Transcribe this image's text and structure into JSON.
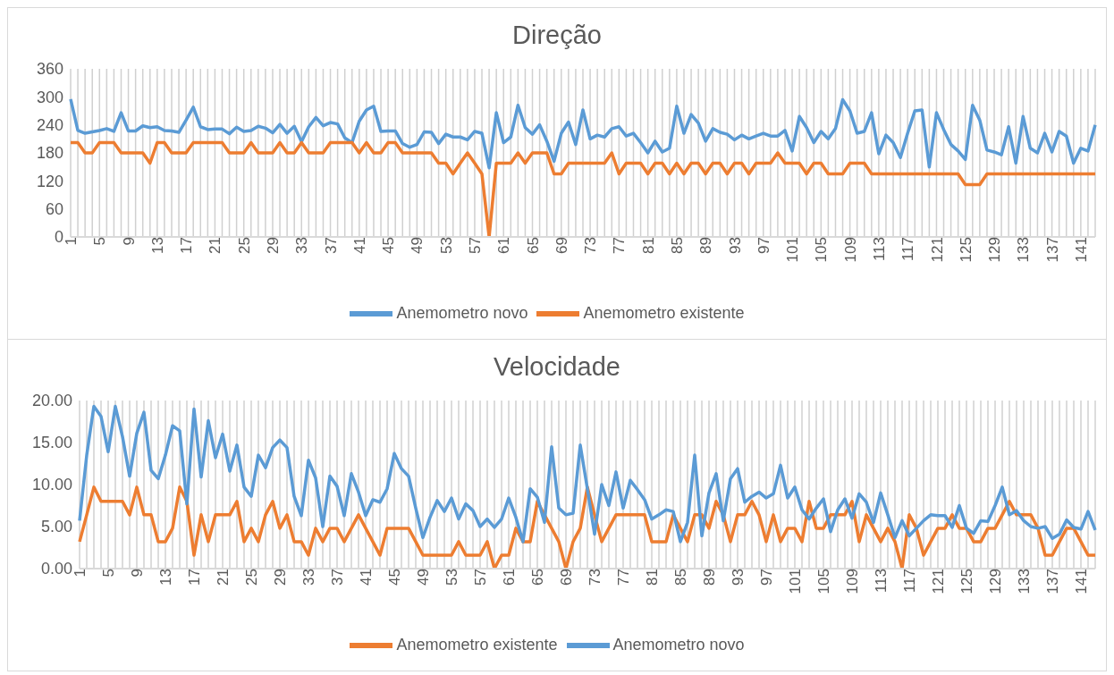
{
  "chart_data": [
    {
      "type": "line",
      "title": "Direção",
      "categories": [
        "1",
        null,
        null,
        null,
        "5",
        null,
        null,
        null,
        "9",
        null,
        null,
        null,
        "13",
        null,
        null,
        null,
        "17",
        null,
        null,
        null,
        "21",
        null,
        null,
        null,
        "25",
        null,
        null,
        null,
        "29",
        null,
        null,
        null,
        "33",
        null,
        null,
        null,
        "37",
        null,
        null,
        null,
        "41",
        null,
        null,
        null,
        "45",
        null,
        null,
        null,
        "49",
        null,
        null,
        null,
        "53",
        null,
        null,
        null,
        "57",
        null,
        null,
        null,
        "61",
        null,
        null,
        null,
        "65",
        null,
        null,
        null,
        "69",
        null,
        null,
        null,
        "73",
        null,
        null,
        null,
        "77",
        null,
        null,
        null,
        "81",
        null,
        null,
        null,
        "85",
        null,
        null,
        null,
        "89",
        null,
        null,
        null,
        "93",
        null,
        null,
        null,
        "97",
        null,
        null,
        null,
        "101",
        null,
        null,
        null,
        "105",
        null,
        null,
        null,
        "109",
        null,
        null,
        null,
        "113",
        null,
        null,
        null,
        "117",
        null,
        null,
        null,
        "121",
        null,
        null,
        null,
        "125",
        null,
        null,
        null,
        "129",
        null,
        null,
        null,
        "133",
        null,
        null,
        null,
        "137",
        null,
        null,
        null,
        "141",
        null,
        null
      ],
      "series": [
        {
          "name": "Anemometro novo",
          "color": "#5b9bd5",
          "values": [
            295,
            228,
            222,
            225,
            228,
            232,
            226,
            266,
            227,
            227,
            238,
            234,
            236,
            228,
            227,
            224,
            250,
            278,
            236,
            230,
            231,
            231,
            221,
            235,
            226,
            228,
            237,
            233,
            223,
            241,
            222,
            237,
            204,
            236,
            256,
            238,
            245,
            242,
            212,
            202,
            248,
            272,
            280,
            226,
            227,
            227,
            200,
            192,
            198,
            225,
            224,
            200,
            220,
            214,
            214,
            208,
            226,
            222,
            148,
            266,
            202,
            214,
            282,
            234,
            220,
            240,
            205,
            162,
            222,
            246,
            198,
            272,
            210,
            218,
            214,
            232,
            236,
            216,
            222,
            202,
            180,
            205,
            182,
            190,
            280,
            222,
            262,
            244,
            205,
            232,
            224,
            220,
            208,
            218,
            210,
            216,
            222,
            216,
            216,
            228,
            184,
            258,
            234,
            202,
            226,
            210,
            232,
            294,
            270,
            222,
            226,
            266,
            178,
            218,
            202,
            170,
            222,
            270,
            272,
            150,
            266,
            230,
            198,
            184,
            166,
            282,
            250,
            186,
            182,
            176,
            236,
            158,
            258,
            190,
            180,
            222,
            182,
            226,
            216,
            158,
            190,
            184,
            240
          ]
        },
        {
          "name": "Anemometro existente",
          "color": "#ed7d31",
          "values": [
            202,
            202,
            180,
            180,
            202,
            202,
            202,
            180,
            180,
            180,
            180,
            158,
            202,
            202,
            180,
            180,
            180,
            202,
            202,
            202,
            202,
            202,
            180,
            180,
            180,
            202,
            180,
            180,
            180,
            202,
            180,
            180,
            202,
            180,
            180,
            180,
            202,
            202,
            202,
            202,
            180,
            202,
            180,
            180,
            202,
            202,
            180,
            180,
            180,
            180,
            180,
            158,
            158,
            135,
            158,
            180,
            158,
            135,
            0,
            158,
            158,
            158,
            180,
            158,
            180,
            180,
            180,
            135,
            135,
            158,
            158,
            158,
            158,
            158,
            158,
            180,
            135,
            158,
            158,
            158,
            135,
            158,
            158,
            135,
            158,
            135,
            158,
            158,
            135,
            158,
            158,
            135,
            158,
            158,
            135,
            158,
            158,
            158,
            180,
            158,
            158,
            158,
            135,
            158,
            158,
            135,
            135,
            135,
            158,
            158,
            158,
            135,
            135,
            135,
            135,
            135,
            135,
            135,
            135,
            135,
            135,
            135,
            135,
            135,
            112,
            112,
            112,
            135,
            135,
            135,
            135,
            135,
            135,
            135,
            135,
            135,
            135,
            135,
            135,
            135,
            135,
            135,
            135
          ]
        }
      ],
      "ylim": [
        0,
        360
      ],
      "yticks": [
        0,
        60,
        120,
        180,
        240,
        300,
        360
      ],
      "grid": "x",
      "legend": "bottom"
    },
    {
      "type": "line",
      "title": "Velocidade",
      "categories": [
        "1",
        null,
        null,
        null,
        "5",
        null,
        null,
        null,
        "9",
        null,
        null,
        null,
        "13",
        null,
        null,
        null,
        "17",
        null,
        null,
        null,
        "21",
        null,
        null,
        null,
        "25",
        null,
        null,
        null,
        "29",
        null,
        null,
        null,
        "33",
        null,
        null,
        null,
        "37",
        null,
        null,
        null,
        "41",
        null,
        null,
        null,
        "45",
        null,
        null,
        null,
        "49",
        null,
        null,
        null,
        "53",
        null,
        null,
        null,
        "57",
        null,
        null,
        null,
        "61",
        null,
        null,
        null,
        "65",
        null,
        null,
        null,
        "69",
        null,
        null,
        null,
        "73",
        null,
        null,
        null,
        "77",
        null,
        null,
        null,
        "81",
        null,
        null,
        null,
        "85",
        null,
        null,
        null,
        "89",
        null,
        null,
        null,
        "93",
        null,
        null,
        null,
        "97",
        null,
        null,
        null,
        "101",
        null,
        null,
        null,
        "105",
        null,
        null,
        null,
        "109",
        null,
        null,
        null,
        "113",
        null,
        null,
        null,
        "117",
        null,
        null,
        null,
        "121",
        null,
        null,
        null,
        "125",
        null,
        null,
        null,
        "129",
        null,
        null,
        null,
        "133",
        null,
        null,
        null,
        "137",
        null,
        null,
        null,
        "141",
        null,
        null
      ],
      "series": [
        {
          "name": "Anemometro existente",
          "color": "#ed7d31",
          "values": [
            3.2,
            6.4,
            9.7,
            8.0,
            8.0,
            8.0,
            8.0,
            6.4,
            9.7,
            6.4,
            6.4,
            3.2,
            3.2,
            4.8,
            9.7,
            8.0,
            1.6,
            6.4,
            3.2,
            6.4,
            6.4,
            6.4,
            8.0,
            3.2,
            4.8,
            3.2,
            6.4,
            8.0,
            4.8,
            6.4,
            3.2,
            3.2,
            1.6,
            4.8,
            3.2,
            4.8,
            4.8,
            3.2,
            4.8,
            6.4,
            4.8,
            3.2,
            1.6,
            4.8,
            4.8,
            4.8,
            4.8,
            3.2,
            1.6,
            1.6,
            1.6,
            1.6,
            1.6,
            3.2,
            1.6,
            1.6,
            1.6,
            3.2,
            0,
            1.6,
            1.6,
            4.8,
            3.2,
            3.2,
            8.0,
            6.4,
            4.8,
            3.2,
            0,
            3.2,
            4.8,
            9.7,
            6.4,
            3.2,
            4.8,
            6.4,
            6.4,
            6.4,
            6.4,
            6.4,
            3.2,
            3.2,
            3.2,
            6.4,
            4.8,
            3.2,
            6.4,
            6.4,
            4.8,
            8.0,
            6.4,
            3.2,
            6.4,
            6.4,
            8.0,
            6.4,
            3.2,
            6.4,
            3.2,
            4.8,
            4.8,
            3.2,
            8.0,
            4.8,
            4.8,
            6.4,
            6.4,
            6.4,
            8.0,
            3.2,
            6.4,
            4.8,
            3.2,
            4.8,
            3.2,
            0,
            6.4,
            4.8,
            1.6,
            3.2,
            4.8,
            4.8,
            6.4,
            4.8,
            4.8,
            3.2,
            3.2,
            4.8,
            4.8,
            6.4,
            8.0,
            6.4,
            6.4,
            6.4,
            4.8,
            1.6,
            1.6,
            3.2,
            4.8,
            4.8,
            3.2,
            1.6,
            1.6
          ]
        },
        {
          "name": "Anemometro novo",
          "color": "#5b9bd5",
          "values": [
            5.7,
            13.5,
            19.3,
            18.1,
            13.9,
            19.3,
            15.7,
            11.0,
            16.1,
            18.6,
            11.7,
            10.7,
            13.5,
            17.0,
            16.4,
            7.7,
            19.0,
            10.9,
            17.6,
            13.2,
            16.0,
            11.6,
            14.7,
            9.7,
            8.6,
            13.5,
            12.0,
            14.4,
            15.3,
            14.4,
            8.6,
            6.3,
            12.9,
            10.8,
            5.0,
            11.0,
            9.8,
            6.3,
            11.3,
            9.1,
            6.3,
            8.2,
            7.9,
            9.5,
            13.7,
            11.9,
            11.0,
            7.2,
            3.7,
            6.1,
            8.1,
            6.8,
            8.4,
            5.9,
            7.7,
            6.9,
            5.0,
            5.9,
            4.9,
            5.9,
            8.4,
            6.1,
            3.2,
            9.5,
            8.5,
            5.5,
            14.5,
            7.2,
            6.4,
            6.6,
            14.7,
            9.5,
            4.1,
            10.0,
            7.5,
            11.5,
            7.2,
            10.5,
            9.4,
            8.2,
            5.9,
            6.4,
            7.0,
            6.8,
            3.2,
            5.5,
            13.5,
            3.9,
            9.0,
            11.3,
            5.7,
            10.7,
            11.9,
            7.9,
            8.6,
            9.1,
            8.4,
            8.9,
            12.3,
            8.4,
            9.7,
            7.0,
            5.9,
            7.2,
            8.3,
            4.4,
            7.0,
            8.3,
            6.0,
            8.9,
            7.9,
            5.5,
            9.0,
            6.4,
            3.7,
            5.7,
            3.9,
            4.8,
            5.7,
            6.4,
            6.3,
            6.3,
            4.9,
            7.5,
            4.8,
            4.2,
            5.7,
            5.6,
            7.5,
            9.7,
            6.4,
            6.9,
            5.7,
            5.0,
            4.8,
            5.0,
            3.6,
            4.1,
            5.8,
            4.9,
            4.7,
            6.8,
            4.6
          ]
        }
      ],
      "ylim": [
        0,
        20
      ],
      "yticks": [
        {
          "value": 0,
          "label": "0.00"
        },
        {
          "value": 5,
          "label": "5.00"
        },
        {
          "value": 10,
          "label": "10.00"
        },
        {
          "value": 15,
          "label": "15.00"
        },
        {
          "value": 20,
          "label": "20.00"
        }
      ],
      "grid": "x",
      "legend": "bottom"
    }
  ]
}
